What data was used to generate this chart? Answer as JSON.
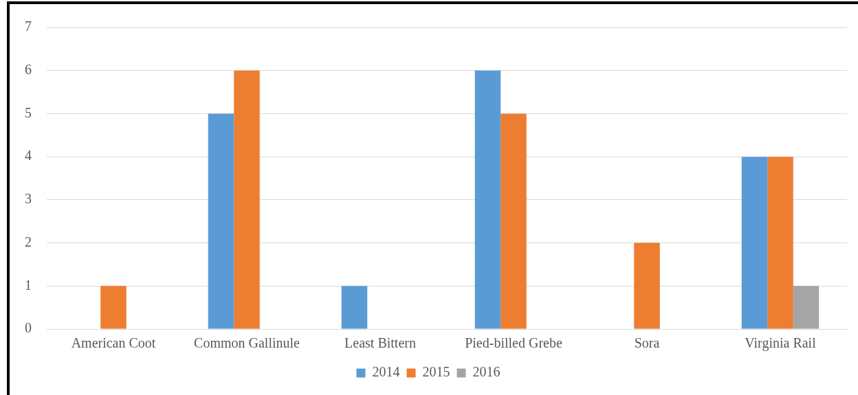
{
  "chart_data": {
    "type": "bar",
    "categories": [
      "American Coot",
      "Common Gallinule",
      "Least Bittern",
      "Pied-billed Grebe",
      "Sora",
      "Virginia Rail"
    ],
    "series": [
      {
        "name": "2014",
        "color": "#5b9bd5",
        "values": [
          0,
          5,
          1,
          6,
          0,
          4
        ]
      },
      {
        "name": "2015",
        "color": "#ed7d31",
        "values": [
          1,
          6,
          0,
          5,
          2,
          4
        ]
      },
      {
        "name": "2016",
        "color": "#a5a5a5",
        "values": [
          0,
          0,
          0,
          0,
          0,
          1
        ]
      }
    ],
    "ylim": [
      0,
      7
    ],
    "yticks": [
      0,
      1,
      2,
      3,
      4,
      5,
      6,
      7
    ],
    "grid": "y",
    "legend": "bottom"
  }
}
